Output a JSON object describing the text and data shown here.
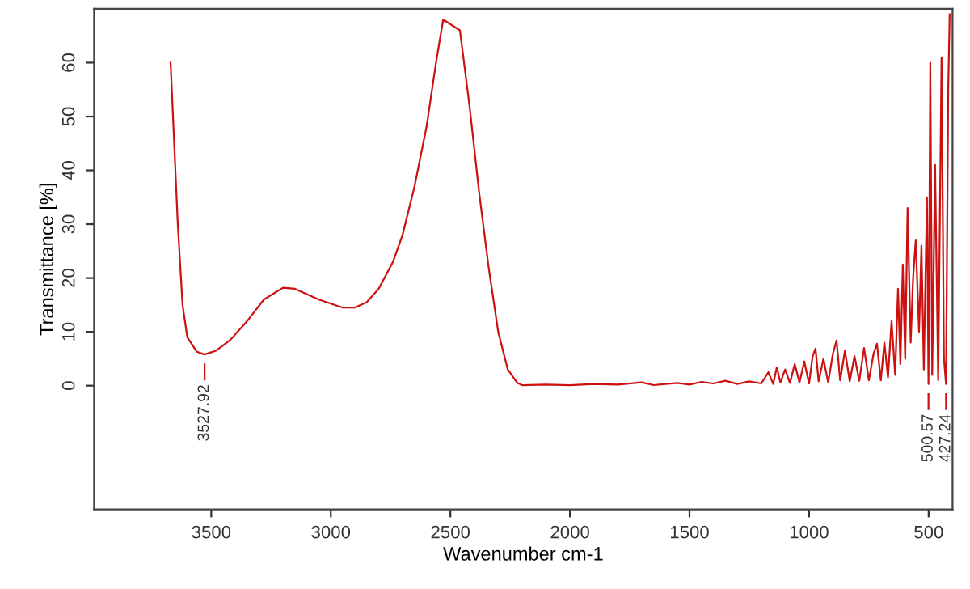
{
  "chart_data": {
    "type": "line",
    "xlabel": "Wavenumber cm-1",
    "ylabel": "Transmittance [%]",
    "xlim": [
      3990,
      400
    ],
    "ylim": [
      -23,
      70
    ],
    "xticks": [
      3500,
      3000,
      2500,
      2000,
      1500,
      1000,
      500
    ],
    "yticks": [
      0,
      10,
      20,
      30,
      40,
      50,
      60
    ],
    "grid": false,
    "marker": "none",
    "line_style": "solid",
    "series": [
      {
        "color": "#cc1111",
        "x": [
          3670,
          3660,
          3640,
          3620,
          3600,
          3560,
          3528,
          3480,
          3420,
          3350,
          3280,
          3200,
          3150,
          3050,
          2950,
          2900,
          2850,
          2800,
          2740,
          2700,
          2650,
          2600,
          2560,
          2530,
          2460,
          2420,
          2380,
          2340,
          2300,
          2260,
          2220,
          2200,
          2100,
          2000,
          1900,
          1800,
          1700,
          1650,
          1600,
          1550,
          1500,
          1450,
          1400,
          1350,
          1300,
          1250,
          1200,
          1170,
          1150,
          1135,
          1120,
          1100,
          1080,
          1060,
          1040,
          1020,
          1000,
          985,
          973,
          960,
          940,
          920,
          900,
          885,
          870,
          850,
          830,
          810,
          790,
          770,
          750,
          730,
          716,
          700,
          685,
          670,
          655,
          640,
          628,
          618,
          608,
          598,
          588,
          575,
          565,
          554,
          540,
          530,
          520,
          507,
          500.57,
          493,
          485,
          473,
          460,
          446,
          436,
          427.24,
          418,
          412
        ],
        "values": [
          60,
          50,
          30,
          15,
          9,
          6.3,
          5.8,
          6.5,
          8.5,
          12,
          16,
          18.2,
          18,
          16,
          14.5,
          14.5,
          15.5,
          18,
          23,
          28,
          37,
          48,
          60,
          68,
          66,
          52,
          36,
          22,
          10,
          3,
          0.5,
          0.1,
          0.2,
          0.1,
          0.3,
          0.2,
          0.6,
          0.1,
          0.3,
          0.5,
          0.2,
          0.7,
          0.4,
          0.9,
          0.3,
          0.8,
          0.4,
          2.5,
          0.3,
          3.4,
          0.6,
          3,
          0.5,
          4,
          0.6,
          4.5,
          0.4,
          5.5,
          6.9,
          0.8,
          5,
          0.6,
          6,
          8.4,
          1,
          6.5,
          0.8,
          5.5,
          0.9,
          7,
          1,
          6,
          7.8,
          1,
          8,
          1.5,
          12,
          2,
          18,
          4,
          22.5,
          5,
          33,
          8,
          20,
          27,
          10,
          26,
          3,
          35,
          0.3,
          60,
          2,
          41,
          1,
          61,
          5,
          0.3,
          55,
          69
        ]
      }
    ],
    "annotations": [
      {
        "text": "3527.92",
        "x": 3527.92,
        "y": 5.8
      },
      {
        "text": "500.57",
        "x": 500.57,
        "y": 0.3
      },
      {
        "text": "427.24",
        "x": 427.24,
        "y": 0.3
      }
    ]
  }
}
